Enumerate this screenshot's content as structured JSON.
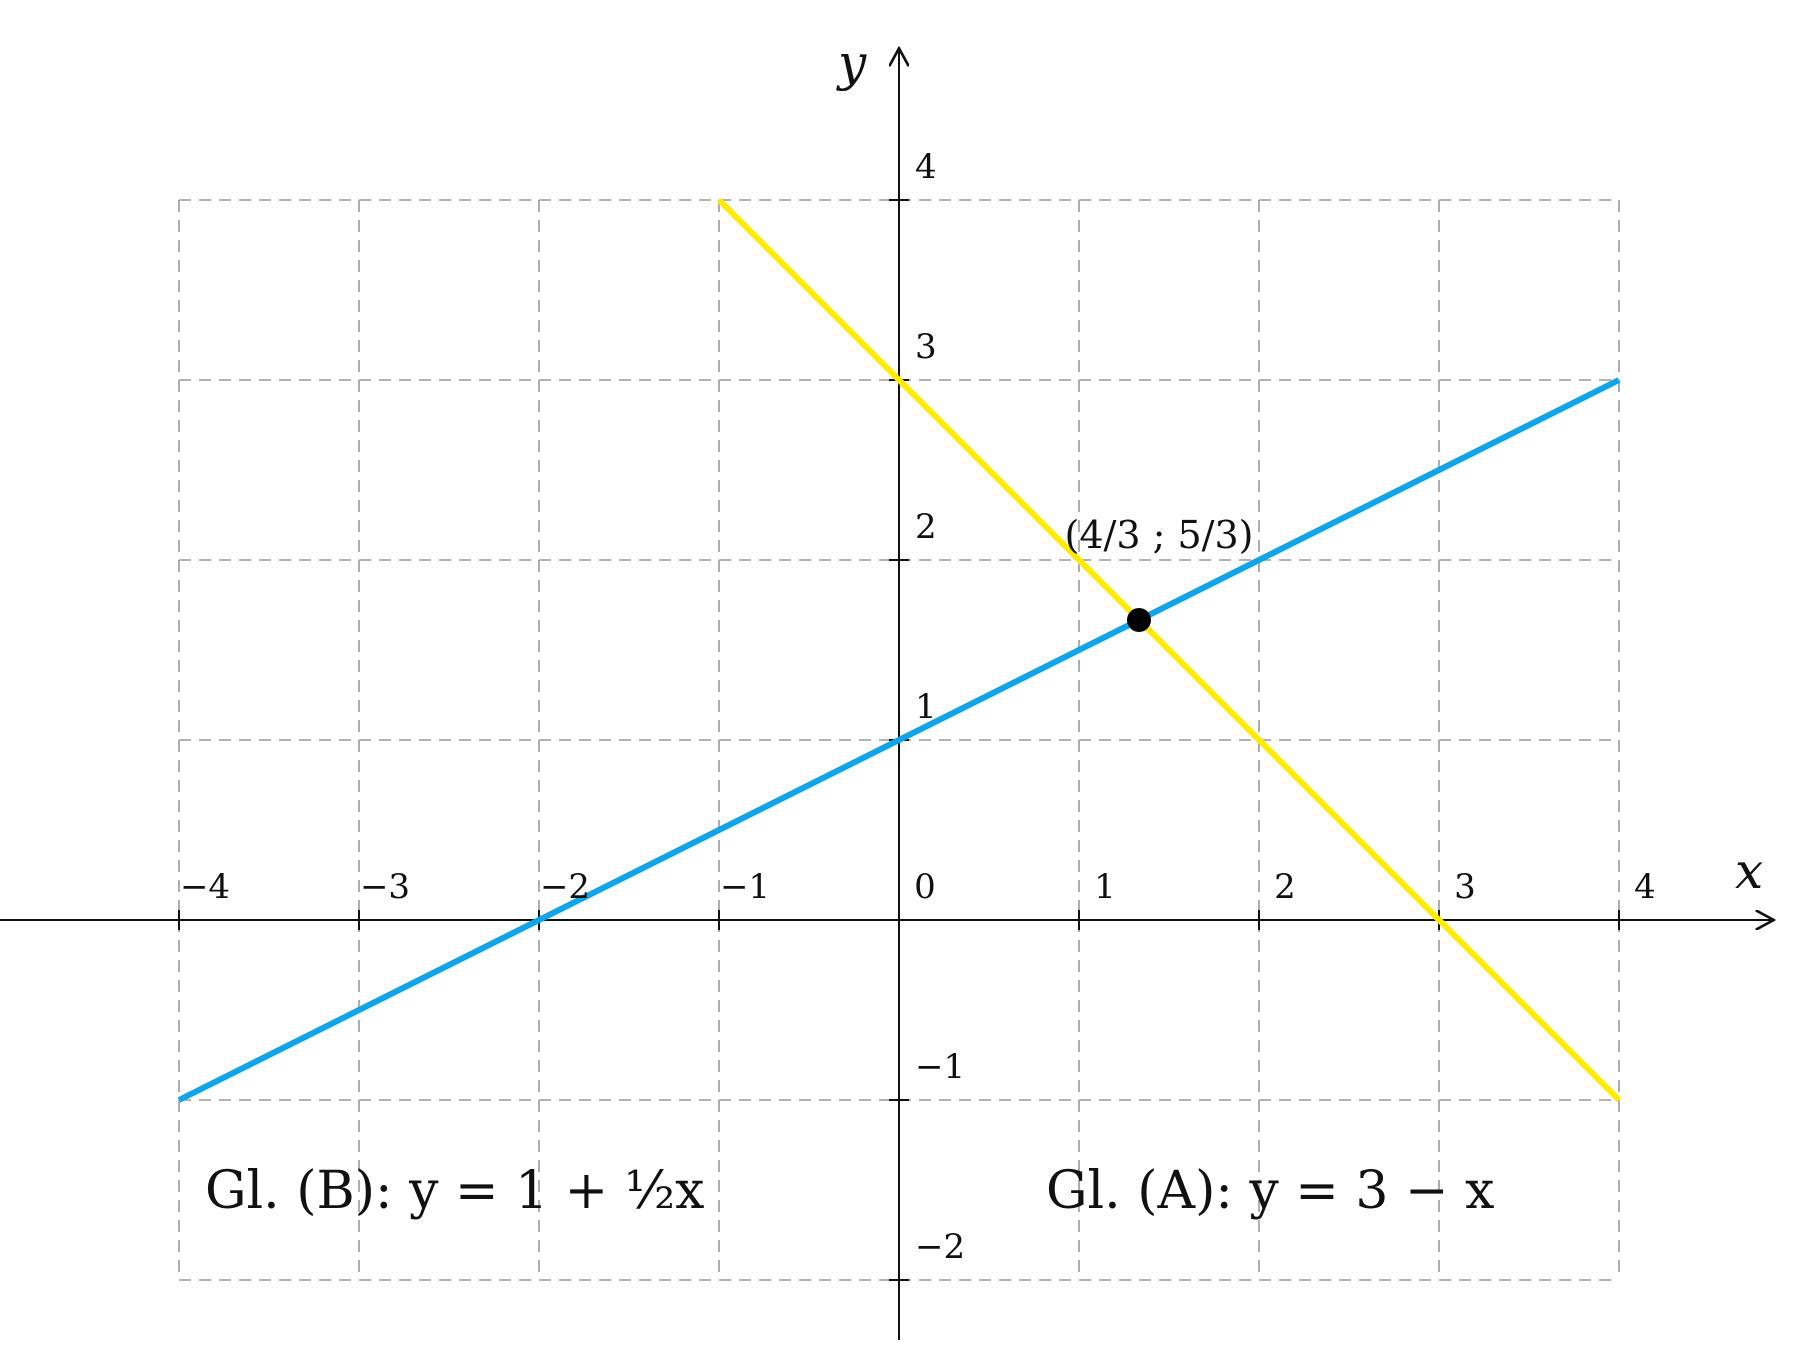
{
  "chart_data": {
    "type": "line",
    "title": "",
    "xlabel": "x",
    "ylabel": "y",
    "xlim": [
      -4,
      4
    ],
    "ylim": [
      -2,
      4
    ],
    "grid": true,
    "x_ticks": [
      "−4",
      "−3",
      "−2",
      "−1",
      "0",
      "1",
      "2",
      "3",
      "4"
    ],
    "y_ticks": [
      "−2",
      "−1",
      "1",
      "2",
      "3",
      "4"
    ],
    "x_tick_values": [
      -4,
      -3,
      -2,
      -1,
      0,
      1,
      2,
      3,
      4
    ],
    "y_tick_values": [
      -2,
      -1,
      1,
      2,
      3,
      4
    ],
    "series": [
      {
        "label": "Gl. (A): y = 3 − x",
        "color": "#FFEA00",
        "x": [
          -1,
          4
        ],
        "y": [
          4,
          -1
        ]
      },
      {
        "label": "Gl. (B): y = 1 + ½x",
        "color": "#0EA5E9",
        "x": [
          -4,
          4
        ],
        "y": [
          -1,
          3
        ]
      }
    ],
    "points": [
      {
        "label": "(4/3 ; 5/3)",
        "x": 1.3333,
        "y": 1.6667,
        "color": "#000000"
      }
    ],
    "annotations": [
      {
        "text": "Gl. (B): y = 1 + ½x"
      },
      {
        "text": "Gl. (A): y = 3 − x"
      }
    ]
  }
}
